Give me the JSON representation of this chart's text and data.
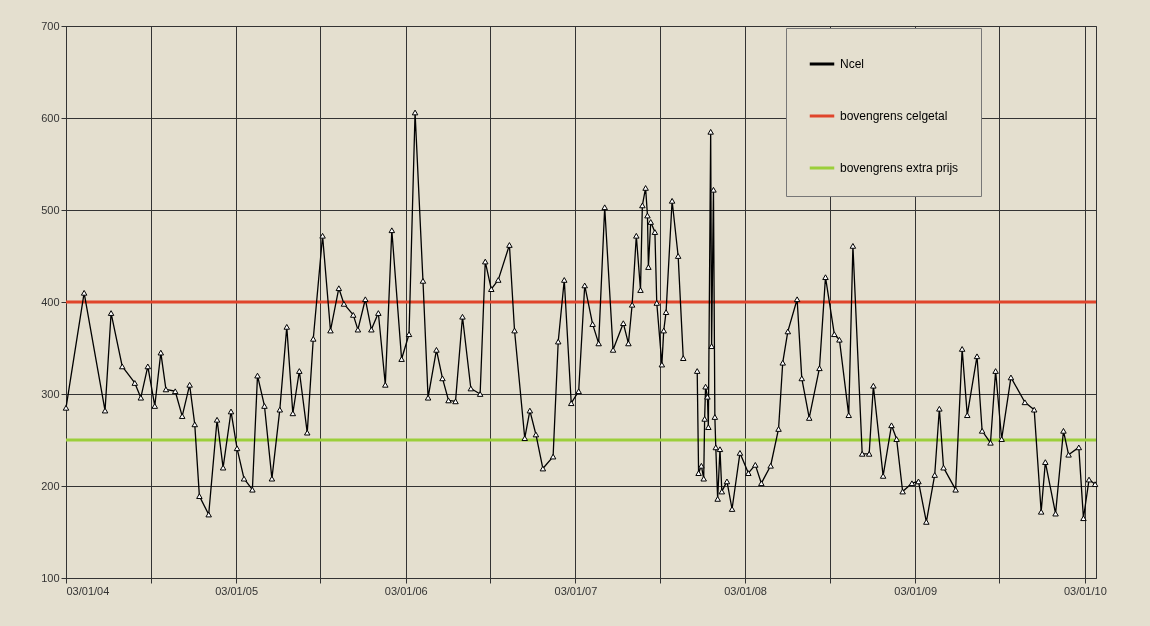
{
  "chart_data": {
    "type": "line",
    "x": [
      "2004-01-03",
      "2004-02-11",
      "2004-03-27",
      "2004-04-09",
      "2004-05-03",
      "2004-05-30",
      "2004-06-12",
      "2004-06-27",
      "2004-07-12",
      "2004-07-25",
      "2004-08-05",
      "2004-08-25",
      "2004-09-09",
      "2004-09-25",
      "2004-10-06",
      "2004-10-16",
      "2004-11-05",
      "2004-11-23",
      "2004-12-06",
      "2004-12-23",
      "2005-01-05",
      "2005-01-20",
      "2005-02-07",
      "2005-02-18",
      "2005-03-05",
      "2005-03-21",
      "2005-04-07",
      "2005-04-22",
      "2005-05-05",
      "2005-05-19",
      "2005-06-05",
      "2005-06-18",
      "2005-07-08",
      "2005-07-25",
      "2005-08-12",
      "2005-08-23",
      "2005-09-12",
      "2005-09-22",
      "2005-10-08",
      "2005-10-21",
      "2005-11-05",
      "2005-11-20",
      "2005-12-04",
      "2005-12-25",
      "2006-01-10",
      "2006-01-23",
      "2006-02-09",
      "2006-02-20",
      "2006-03-10",
      "2006-03-23",
      "2006-04-05",
      "2006-04-20",
      "2006-05-05",
      "2006-05-23",
      "2006-06-12",
      "2006-06-23",
      "2006-07-06",
      "2006-07-21",
      "2006-08-14",
      "2006-08-25",
      "2006-09-16",
      "2006-09-27",
      "2006-10-10",
      "2006-10-25",
      "2006-11-16",
      "2006-11-27",
      "2006-12-10",
      "2006-12-25",
      "2007-01-10",
      "2007-01-23",
      "2007-02-09",
      "2007-02-22",
      "2007-03-07",
      "2007-03-25",
      "2007-04-16",
      "2007-04-27",
      "2007-05-05",
      "2007-05-14",
      "2007-05-23",
      "2007-05-27",
      "2007-06-03",
      "2007-06-07",
      "2007-06-09",
      "2007-06-14",
      "2007-06-23",
      "2007-06-27",
      "2007-07-08",
      "2007-07-12",
      "2007-07-17",
      "2007-07-30",
      "2007-08-12",
      "2007-08-23",
      "2007-09-01",
      "2007-09-22",
      "2007-09-25",
      "2007-10-01",
      "2007-10-06",
      "2007-10-08",
      "2007-10-10",
      "2007-10-14",
      "2007-10-16",
      "2007-10-21",
      "2007-10-23",
      "2007-10-27",
      "2007-10-30",
      "2007-11-01",
      "2007-11-05",
      "2007-11-10",
      "2007-11-14",
      "2007-11-25",
      "2007-12-06",
      "2007-12-23",
      "2008-01-10",
      "2008-01-25",
      "2008-02-07",
      "2008-02-27",
      "2008-03-15",
      "2008-03-24",
      "2008-04-04",
      "2008-04-24",
      "2008-05-04",
      "2008-05-20",
      "2008-06-11",
      "2008-06-24",
      "2008-07-13",
      "2008-07-24",
      "2008-08-13",
      "2008-08-22",
      "2008-09-11",
      "2008-09-26",
      "2008-10-05",
      "2008-10-26",
      "2008-11-13",
      "2008-11-24",
      "2008-12-07",
      "2008-12-27",
      "2009-01-10",
      "2009-01-27",
      "2009-02-14",
      "2009-02-24",
      "2009-03-05",
      "2009-03-31",
      "2009-04-14",
      "2009-04-25",
      "2009-05-16",
      "2009-05-27",
      "2009-06-14",
      "2009-06-25",
      "2009-07-08",
      "2009-07-28",
      "2009-08-27",
      "2009-09-16",
      "2009-10-01",
      "2009-10-10",
      "2009-11-01",
      "2009-11-18",
      "2009-11-29",
      "2009-12-21",
      "2009-12-31",
      "2010-01-12",
      "2010-01-25"
    ],
    "series": [
      {
        "name": "Ncel",
        "color": "#000000",
        "values": [
          285,
          410,
          282,
          388,
          330,
          312,
          296,
          330,
          287,
          345,
          305,
          303,
          276,
          310,
          267,
          189,
          169,
          272,
          220,
          281,
          241,
          208,
          196,
          320,
          287,
          208,
          283,
          373,
          279,
          325,
          258,
          360,
          472,
          369,
          415,
          398,
          386,
          370,
          403,
          370,
          388,
          310,
          478,
          338,
          365,
          606,
          423,
          296,
          348,
          317,
          293,
          292,
          384,
          306,
          300,
          444,
          414,
          424,
          462,
          369,
          252,
          282,
          256,
          219,
          232,
          357,
          424,
          290,
          303,
          418,
          376,
          355,
          503,
          348,
          377,
          355,
          397,
          472,
          413,
          505,
          524,
          494,
          438,
          487,
          476,
          399,
          332,
          369,
          389,
          510,
          450,
          339,
          null,
          325,
          214,
          222,
          208,
          273,
          308,
          297,
          264,
          585,
          352,
          522,
          275,
          242,
          186,
          240,
          194,
          205,
          175,
          236,
          214,
          223,
          203,
          222,
          262,
          334,
          368,
          403,
          317,
          274,
          328,
          427,
          365,
          359,
          277,
          461,
          235,
          235,
          309,
          211,
          266,
          251,
          194,
          203,
          205,
          161,
          212,
          284,
          220,
          196,
          349,
          277,
          341,
          260,
          247,
          325,
          251,
          318,
          291,
          283,
          172,
          226,
          170,
          260,
          234,
          242,
          165,
          207,
          202
        ]
      }
    ],
    "xlim": [
      "2004-01-03",
      "2010-01-27"
    ],
    "xticks": [
      {
        "value": "2004-01-03",
        "label": "03/01/04"
      },
      {
        "value": "2004-07-03",
        "label": null
      },
      {
        "value": "2005-01-03",
        "label": "03/01/05"
      },
      {
        "value": "2005-07-03",
        "label": null
      },
      {
        "value": "2006-01-03",
        "label": "03/01/06"
      },
      {
        "value": "2006-07-03",
        "label": null
      },
      {
        "value": "2007-01-03",
        "label": "03/01/07"
      },
      {
        "value": "2007-07-03",
        "label": null
      },
      {
        "value": "2008-01-03",
        "label": "03/01/08"
      },
      {
        "value": "2008-07-03",
        "label": null
      },
      {
        "value": "2009-01-03",
        "label": "03/01/09"
      },
      {
        "value": "2009-07-03",
        "label": null
      },
      {
        "value": "2010-01-03",
        "label": "03/01/10"
      }
    ],
    "ylim": [
      100,
      700
    ],
    "yticks": [
      100,
      200,
      300,
      400,
      500,
      600,
      700
    ],
    "ref_lines": [
      {
        "axis": "y",
        "value": 400,
        "label": "bovengrens celgetal",
        "color": "#e0452b"
      },
      {
        "axis": "y",
        "value": 250,
        "label": "bovengrens extra prijs",
        "color": "#9bcf3a"
      }
    ],
    "marker": "triangle",
    "line_style": "solid",
    "grid": true,
    "legend": "top right"
  }
}
